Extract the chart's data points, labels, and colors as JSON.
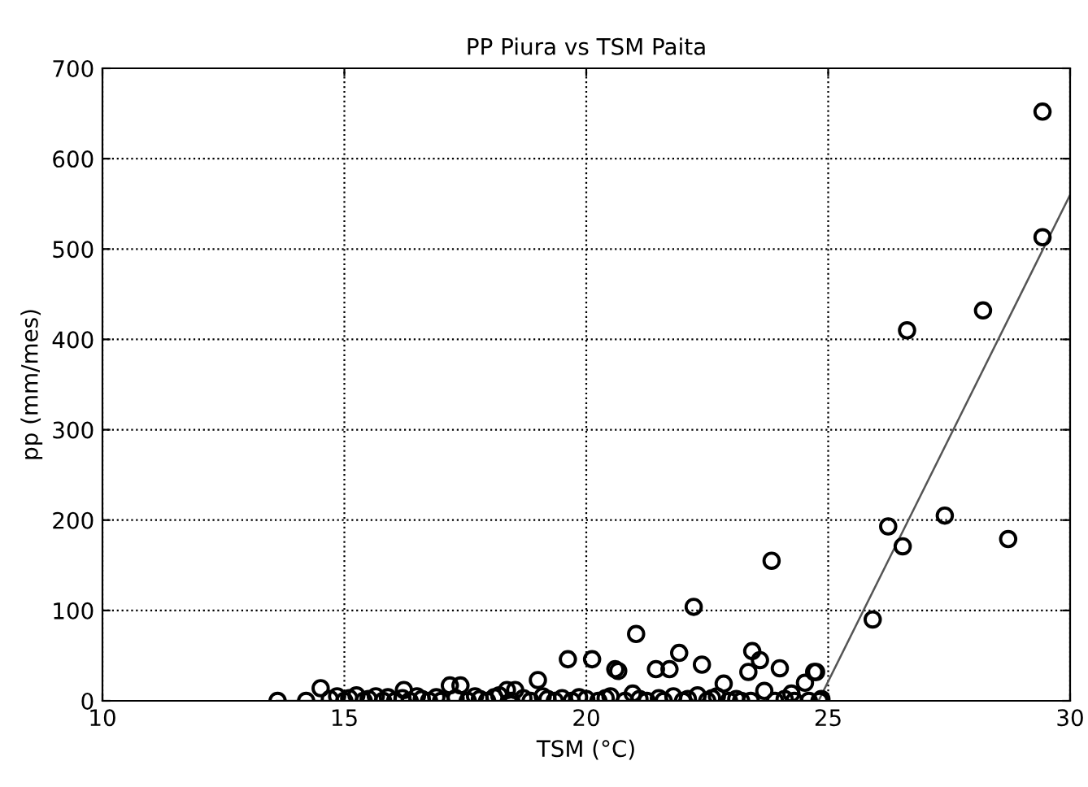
{
  "chart_data": {
    "type": "scatter",
    "title": "PP Piura vs TSM Paita",
    "xlabel": "TSM (°C)",
    "ylabel": "pp (mm/mes)",
    "xlim": [
      10,
      30
    ],
    "xticks": [
      10,
      15,
      20,
      25,
      30
    ],
    "ylim": [
      0,
      700
    ],
    "yticks": [
      0,
      100,
      200,
      300,
      400,
      500,
      600,
      700
    ],
    "grid": true,
    "series": [
      {
        "color": "#000000",
        "marker": "circle",
        "x": [
          13.62,
          14.21,
          14.51,
          14.7,
          14.85,
          15.0,
          15.1,
          15.25,
          15.4,
          15.5,
          15.65,
          15.8,
          15.9,
          16.05,
          16.2,
          16.23,
          16.35,
          16.5,
          16.6,
          16.75,
          16.9,
          17.0,
          17.18,
          17.3,
          17.4,
          17.55,
          17.7,
          17.8,
          17.95,
          18.1,
          18.2,
          18.36,
          18.45,
          18.53,
          18.7,
          18.85,
          19.0,
          19.1,
          19.2,
          19.35,
          19.5,
          19.62,
          19.7,
          19.85,
          20.0,
          20.12,
          20.25,
          20.4,
          20.5,
          20.6,
          20.66,
          20.8,
          20.96,
          21.03,
          21.1,
          21.25,
          21.44,
          21.5,
          21.6,
          21.72,
          21.8,
          21.92,
          22.0,
          22.1,
          22.22,
          22.3,
          22.39,
          22.5,
          22.6,
          22.7,
          22.84,
          22.95,
          23.1,
          23.2,
          23.35,
          23.4,
          23.43,
          23.59,
          23.68,
          23.83,
          23.9,
          24.0,
          24.1,
          24.24,
          24.3,
          24.52,
          24.6,
          24.71,
          24.75,
          24.82,
          24.86,
          25.92,
          26.24,
          26.54,
          26.63,
          27.41,
          28.2,
          28.72,
          29.43,
          29.43
        ],
        "values": [
          0,
          0,
          14,
          2,
          5,
          0,
          3,
          6,
          0,
          2,
          5,
          0,
          4,
          0,
          3,
          12,
          0,
          5,
          2,
          0,
          4,
          0,
          17,
          3,
          17,
          0,
          5,
          2,
          0,
          4,
          6,
          12,
          0,
          12,
          3,
          0,
          23,
          5,
          2,
          0,
          3,
          46,
          0,
          4,
          2,
          46,
          0,
          3,
          5,
          35,
          33,
          0,
          8,
          74,
          2,
          0,
          35,
          3,
          0,
          35,
          5,
          53,
          0,
          2,
          104,
          6,
          40,
          0,
          3,
          5,
          19,
          0,
          2,
          0,
          32,
          0,
          55,
          45,
          11,
          155,
          0,
          36,
          2,
          8,
          0,
          20,
          0,
          32,
          32,
          0,
          2,
          90,
          193,
          171,
          410,
          205,
          432,
          179,
          513,
          652
        ]
      },
      {
        "type": "line",
        "color": "#555555",
        "marker": "none",
        "line_style": "solid",
        "x": [
          13.6,
          24.8,
          30
        ],
        "values": [
          0,
          0,
          560
        ]
      }
    ]
  }
}
